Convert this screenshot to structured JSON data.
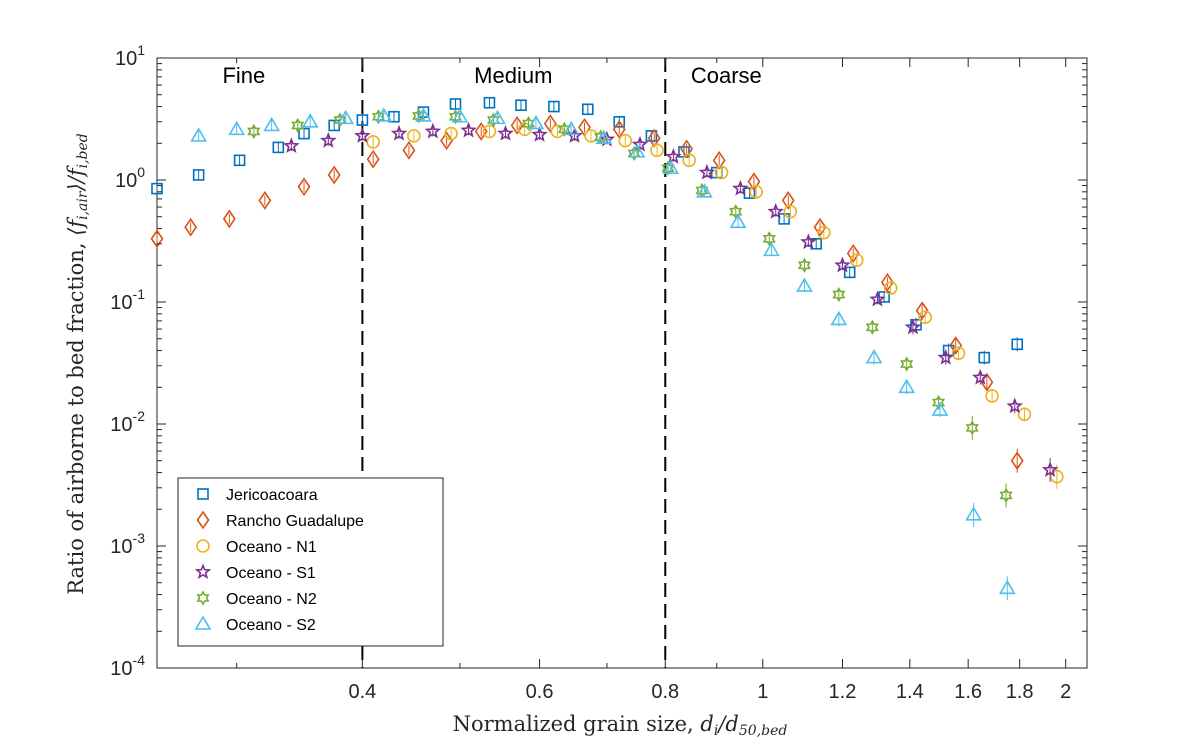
{
  "chart_data": {
    "type": "scatter",
    "title": "",
    "xlabel_text": "Normalized grain size, ",
    "xlabel_math": [
      "d",
      "i",
      "/d",
      "50,bed"
    ],
    "ylabel_text": "Ratio of airborne to bed fraction, ",
    "ylabel_math": [
      "⟨f",
      "i,air",
      "⟩/f",
      "i,bed"
    ],
    "x_scale": "log",
    "y_scale": "log",
    "xlim": [
      0.25,
      2.1
    ],
    "ylim": [
      0.0001,
      10
    ],
    "x_ticks": [
      {
        "value": 0.4,
        "label": "0.4"
      },
      {
        "value": 0.6,
        "label": "0.6"
      },
      {
        "value": 0.8,
        "label": "0.8"
      },
      {
        "value": 1.0,
        "label": "1"
      },
      {
        "value": 1.2,
        "label": "1.2"
      },
      {
        "value": 1.4,
        "label": "1.4"
      },
      {
        "value": 1.6,
        "label": "1.6"
      },
      {
        "value": 1.8,
        "label": "1.8"
      },
      {
        "value": 2.0,
        "label": "2"
      }
    ],
    "y_ticks": [
      {
        "value": 10,
        "base": "10",
        "exp": "1"
      },
      {
        "value": 1,
        "base": "10",
        "exp": "0"
      },
      {
        "value": 0.1,
        "base": "10",
        "exp": "-1"
      },
      {
        "value": 0.01,
        "base": "10",
        "exp": "-2"
      },
      {
        "value": 0.001,
        "base": "10",
        "exp": "-3"
      },
      {
        "value": 0.0001,
        "base": "10",
        "exp": "-4"
      }
    ],
    "grid": false,
    "boundaries": [
      0.4,
      0.8
    ],
    "regions": [
      {
        "label": "Fine",
        "x": 0.305
      },
      {
        "label": "Medium",
        "x": 0.565
      },
      {
        "label": "Coarse",
        "x": 0.92
      }
    ],
    "legend_position": "bottom-left",
    "series": [
      {
        "name": "Jericoacoara",
        "marker": "square",
        "color": "#0072BD",
        "points": [
          [
            0.25,
            0.85
          ],
          [
            0.275,
            1.1
          ],
          [
            0.302,
            1.45
          ],
          [
            0.33,
            1.85
          ],
          [
            0.35,
            2.4
          ],
          [
            0.375,
            2.8
          ],
          [
            0.4,
            3.1
          ],
          [
            0.43,
            3.3
          ],
          [
            0.46,
            3.6
          ],
          [
            0.495,
            4.2
          ],
          [
            0.535,
            4.3
          ],
          [
            0.575,
            4.1
          ],
          [
            0.62,
            4.0
          ],
          [
            0.67,
            3.8
          ],
          [
            0.72,
            3.0
          ],
          [
            0.775,
            2.3
          ],
          [
            0.835,
            1.7
          ],
          [
            0.9,
            1.15
          ],
          [
            0.97,
            0.78
          ],
          [
            1.05,
            0.48
          ],
          [
            1.13,
            0.3
          ],
          [
            1.22,
            0.175
          ],
          [
            1.32,
            0.11
          ],
          [
            1.42,
            0.065
          ],
          [
            1.53,
            0.04
          ],
          [
            1.66,
            0.035
          ],
          [
            1.79,
            0.045
          ]
        ]
      },
      {
        "name": "Rancho Guadalupe",
        "marker": "diamond",
        "color": "#D95319",
        "points": [
          [
            0.25,
            0.33
          ],
          [
            0.27,
            0.41
          ],
          [
            0.295,
            0.48
          ],
          [
            0.32,
            0.68
          ],
          [
            0.35,
            0.88
          ],
          [
            0.375,
            1.1
          ],
          [
            0.41,
            1.48
          ],
          [
            0.445,
            1.75
          ],
          [
            0.485,
            2.1
          ],
          [
            0.525,
            2.5
          ],
          [
            0.57,
            2.8
          ],
          [
            0.615,
            2.9
          ],
          [
            0.665,
            2.7
          ],
          [
            0.72,
            2.6
          ],
          [
            0.78,
            2.2
          ],
          [
            0.84,
            1.8
          ],
          [
            0.905,
            1.45
          ],
          [
            0.98,
            0.97
          ],
          [
            1.06,
            0.68
          ],
          [
            1.14,
            0.41
          ],
          [
            1.23,
            0.25
          ],
          [
            1.33,
            0.145
          ],
          [
            1.44,
            0.085
          ],
          [
            1.555,
            0.044
          ],
          [
            1.67,
            0.022
          ],
          [
            1.79,
            0.005
          ]
        ]
      },
      {
        "name": "Oceano - N1",
        "marker": "circle",
        "color": "#EDB120",
        "points": [
          [
            0.41,
            2.05
          ],
          [
            0.45,
            2.3
          ],
          [
            0.49,
            2.4
          ],
          [
            0.535,
            2.5
          ],
          [
            0.58,
            2.6
          ],
          [
            0.625,
            2.5
          ],
          [
            0.675,
            2.3
          ],
          [
            0.73,
            2.1
          ],
          [
            0.785,
            1.75
          ],
          [
            0.845,
            1.45
          ],
          [
            0.91,
            1.15
          ],
          [
            0.985,
            0.8
          ],
          [
            1.065,
            0.55
          ],
          [
            1.15,
            0.37
          ],
          [
            1.24,
            0.22
          ],
          [
            1.34,
            0.13
          ],
          [
            1.45,
            0.075
          ],
          [
            1.565,
            0.038
          ],
          [
            1.69,
            0.017
          ],
          [
            1.82,
            0.012
          ],
          [
            1.96,
            0.0037
          ]
        ]
      },
      {
        "name": "Oceano - S1",
        "marker": "star",
        "color": "#7E2F8E",
        "points": [
          [
            0.34,
            1.9
          ],
          [
            0.37,
            2.1
          ],
          [
            0.4,
            2.3
          ],
          [
            0.435,
            2.4
          ],
          [
            0.47,
            2.5
          ],
          [
            0.51,
            2.55
          ],
          [
            0.555,
            2.4
          ],
          [
            0.6,
            2.35
          ],
          [
            0.65,
            2.3
          ],
          [
            0.7,
            2.15
          ],
          [
            0.755,
            1.95
          ],
          [
            0.815,
            1.55
          ],
          [
            0.88,
            1.15
          ],
          [
            0.95,
            0.85
          ],
          [
            1.03,
            0.55
          ],
          [
            1.11,
            0.31
          ],
          [
            1.2,
            0.2
          ],
          [
            1.3,
            0.105
          ],
          [
            1.41,
            0.062
          ],
          [
            1.52,
            0.035
          ],
          [
            1.645,
            0.024
          ],
          [
            1.78,
            0.014
          ],
          [
            1.93,
            0.0042
          ]
        ]
      },
      {
        "name": "Oceano - N2",
        "marker": "hexagram",
        "color": "#77AC30",
        "points": [
          [
            0.312,
            2.5
          ],
          [
            0.345,
            2.8
          ],
          [
            0.38,
            3.1
          ],
          [
            0.415,
            3.3
          ],
          [
            0.455,
            3.35
          ],
          [
            0.495,
            3.3
          ],
          [
            0.54,
            3.1
          ],
          [
            0.585,
            2.9
          ],
          [
            0.635,
            2.6
          ],
          [
            0.69,
            2.25
          ],
          [
            0.745,
            1.65
          ],
          [
            0.805,
            1.25
          ],
          [
            0.87,
            0.82
          ],
          [
            0.94,
            0.55
          ],
          [
            1.015,
            0.33
          ],
          [
            1.1,
            0.2
          ],
          [
            1.19,
            0.115
          ],
          [
            1.285,
            0.062
          ],
          [
            1.39,
            0.031
          ],
          [
            1.495,
            0.015
          ],
          [
            1.615,
            0.0093
          ],
          [
            1.745,
            0.0026
          ]
        ]
      },
      {
        "name": "Oceano - S2",
        "marker": "triangle",
        "color": "#4DBEEE",
        "points": [
          [
            0.275,
            2.3
          ],
          [
            0.3,
            2.6
          ],
          [
            0.325,
            2.8
          ],
          [
            0.355,
            3.0
          ],
          [
            0.385,
            3.2
          ],
          [
            0.42,
            3.35
          ],
          [
            0.46,
            3.35
          ],
          [
            0.5,
            3.3
          ],
          [
            0.545,
            3.2
          ],
          [
            0.595,
            2.9
          ],
          [
            0.645,
            2.6
          ],
          [
            0.695,
            2.2
          ],
          [
            0.75,
            1.7
          ],
          [
            0.81,
            1.25
          ],
          [
            0.875,
            0.8
          ],
          [
            0.945,
            0.45
          ],
          [
            1.02,
            0.265
          ],
          [
            1.1,
            0.135
          ],
          [
            1.19,
            0.072
          ],
          [
            1.29,
            0.035
          ],
          [
            1.39,
            0.02
          ],
          [
            1.5,
            0.013
          ],
          [
            1.62,
            0.0018
          ],
          [
            1.75,
            0.00045
          ]
        ]
      }
    ]
  }
}
